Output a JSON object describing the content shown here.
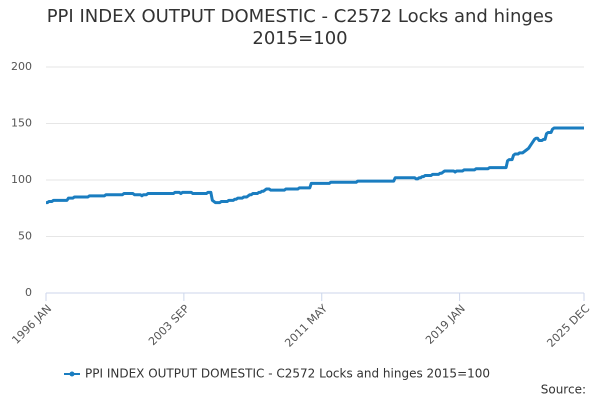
{
  "chart_data": {
    "type": "line",
    "title": "PPI INDEX OUTPUT DOMESTIC - C2572 Locks and hinges 2015=100",
    "source": "Source:",
    "categories": [
      "1996 JAN",
      null,
      null,
      null,
      null,
      null,
      null,
      null,
      null,
      null,
      null,
      null,
      null,
      null,
      null,
      null,
      null,
      null,
      null,
      null,
      null,
      null,
      null,
      null,
      null,
      null,
      null,
      null,
      null,
      null,
      null,
      null,
      null,
      null,
      null,
      null,
      null,
      null,
      null,
      null,
      null,
      null,
      null,
      null,
      null,
      null,
      null,
      null,
      null,
      null,
      null,
      null,
      null,
      null,
      null,
      null,
      null,
      null,
      null,
      null,
      null,
      null,
      null,
      null,
      null,
      null,
      null,
      null,
      null,
      null,
      null,
      null,
      null,
      null,
      null,
      null,
      null,
      null,
      null,
      null,
      null,
      null,
      null,
      null,
      null,
      null,
      null,
      null,
      null,
      null,
      null,
      null,
      "2003 SEP",
      null,
      null,
      null,
      null,
      null,
      null,
      null,
      null,
      null,
      null,
      null,
      null,
      null,
      null,
      null,
      null,
      null,
      null,
      null,
      null,
      null,
      null,
      null,
      null,
      null,
      null,
      null,
      null,
      null,
      null,
      null,
      null,
      null,
      null,
      null,
      null,
      null,
      null,
      null,
      null,
      null,
      null,
      null,
      null,
      null,
      null,
      null,
      null,
      null,
      null,
      null,
      null,
      null,
      null,
      null,
      null,
      null,
      null,
      null,
      null,
      null,
      null,
      null,
      null,
      null,
      null,
      null,
      null,
      null,
      null,
      null,
      null,
      null,
      null,
      null,
      null,
      null,
      null,
      null,
      null,
      null,
      null,
      null,
      null,
      null,
      null,
      null,
      null,
      null,
      null,
      null,
      "2011 MAY",
      null,
      null,
      null,
      null,
      null,
      null,
      null,
      null,
      null,
      null,
      null,
      null,
      null,
      null,
      null,
      null,
      null,
      null,
      null,
      null,
      null,
      null,
      null,
      null,
      null,
      null,
      null,
      null,
      null,
      null,
      null,
      null,
      null,
      null,
      null,
      null,
      null,
      null,
      null,
      null,
      null,
      null,
      null,
      null,
      null,
      null,
      null,
      null,
      null,
      null,
      null,
      null,
      null,
      null,
      null,
      null,
      null,
      null,
      null,
      null,
      null,
      null,
      null,
      null,
      null,
      null,
      null,
      null,
      null,
      null,
      null,
      null,
      null,
      null,
      null,
      null,
      null,
      null,
      null,
      null,
      null,
      null,
      null,
      null,
      null,
      null,
      null,
      null,
      null,
      null,
      null,
      "2019 JAN",
      null,
      null,
      null,
      null,
      null,
      null,
      null,
      null,
      null,
      null,
      null,
      null,
      null,
      null,
      null,
      null,
      null,
      null,
      null,
      null,
      null,
      null,
      null,
      null,
      null,
      null,
      null,
      null,
      null,
      null,
      null,
      null,
      null,
      null,
      null,
      null,
      null,
      null,
      null,
      null,
      null,
      null,
      null,
      null,
      null,
      null,
      null,
      null,
      null,
      null,
      null,
      null,
      null,
      null,
      null,
      null,
      null,
      null,
      null,
      null,
      null,
      null,
      null,
      null,
      null,
      null,
      null,
      null,
      null,
      null,
      null,
      null,
      null,
      null,
      null,
      null,
      null,
      null,
      null,
      null,
      null,
      null,
      "2025 DEC"
    ],
    "series": [
      {
        "name": "PPI INDEX OUTPUT DOMESTIC - C2572 Locks and hinges 2015=100",
        "color": "#1a7dc0",
        "values": [
          80,
          80,
          81,
          81,
          81,
          82,
          82,
          82,
          82,
          82,
          82,
          82,
          82,
          82,
          82,
          84,
          84,
          84,
          84,
          85,
          85,
          85,
          85,
          85,
          85,
          85,
          85,
          85,
          85,
          86,
          86,
          86,
          86,
          86,
          86,
          86,
          86,
          86,
          86,
          86,
          87,
          87,
          87,
          87,
          87,
          87,
          87,
          87,
          87,
          87,
          87,
          87,
          88,
          88,
          88,
          88,
          88,
          88,
          88,
          87,
          87,
          87,
          87,
          87,
          86,
          87,
          87,
          87,
          88,
          88,
          88,
          88,
          88,
          88,
          88,
          88,
          88,
          88,
          88,
          88,
          88,
          88,
          88,
          88,
          88,
          88,
          89,
          89,
          89,
          89,
          88,
          89,
          89,
          89,
          89,
          89,
          89,
          89,
          88,
          88,
          88,
          88,
          88,
          88,
          88,
          88,
          88,
          88,
          89,
          89,
          89,
          82,
          81,
          80,
          80,
          80,
          80,
          81,
          81,
          81,
          81,
          81,
          82,
          82,
          82,
          82,
          83,
          83,
          84,
          84,
          84,
          84,
          85,
          85,
          85,
          86,
          87,
          87,
          88,
          88,
          88,
          88,
          89,
          89,
          90,
          90,
          91,
          92,
          92,
          92,
          91,
          91,
          91,
          91,
          91,
          91,
          91,
          91,
          91,
          91,
          92,
          92,
          92,
          92,
          92,
          92,
          92,
          92,
          92,
          93,
          93,
          93,
          93,
          93,
          93,
          93,
          93,
          97,
          97,
          97,
          97,
          97,
          97,
          97,
          97,
          97,
          97,
          97,
          97,
          97,
          98,
          98,
          98,
          98,
          98,
          98,
          98,
          98,
          98,
          98,
          98,
          98,
          98,
          98,
          98,
          98,
          98,
          98,
          99,
          99,
          99,
          99,
          99,
          99,
          99,
          99,
          99,
          99,
          99,
          99,
          99,
          99,
          99,
          99,
          99,
          99,
          99,
          99,
          99,
          99,
          99,
          99,
          99,
          102,
          102,
          102,
          102,
          102,
          102,
          102,
          102,
          102,
          102,
          102,
          102,
          102,
          102,
          101,
          101,
          102,
          102,
          103,
          103,
          104,
          104,
          104,
          104,
          104,
          105,
          105,
          105,
          105,
          105,
          106,
          106,
          107,
          108,
          108,
          108,
          108,
          108,
          108,
          108,
          107,
          108,
          108,
          108,
          108,
          108,
          109,
          109,
          109,
          109,
          109,
          109,
          109,
          109,
          110,
          110,
          110,
          110,
          110,
          110,
          110,
          110,
          110,
          111,
          111,
          111,
          111,
          111,
          111,
          111,
          111,
          111,
          111,
          111,
          111,
          117,
          118,
          118,
          118,
          122,
          123,
          123,
          123,
          124,
          124,
          124,
          125,
          126,
          127,
          128,
          130,
          132,
          134,
          136,
          137,
          137,
          135,
          135,
          135,
          136,
          136,
          141,
          142,
          142,
          142,
          145,
          146,
          146,
          146,
          146,
          146,
          146,
          146,
          146,
          146,
          146,
          146,
          146,
          146,
          146,
          146,
          146,
          146,
          146,
          146,
          146,
          146
        ]
      }
    ],
    "ylim": [
      0,
      200
    ],
    "yticks": [
      0,
      50,
      100,
      150,
      200
    ],
    "grid": true
  }
}
